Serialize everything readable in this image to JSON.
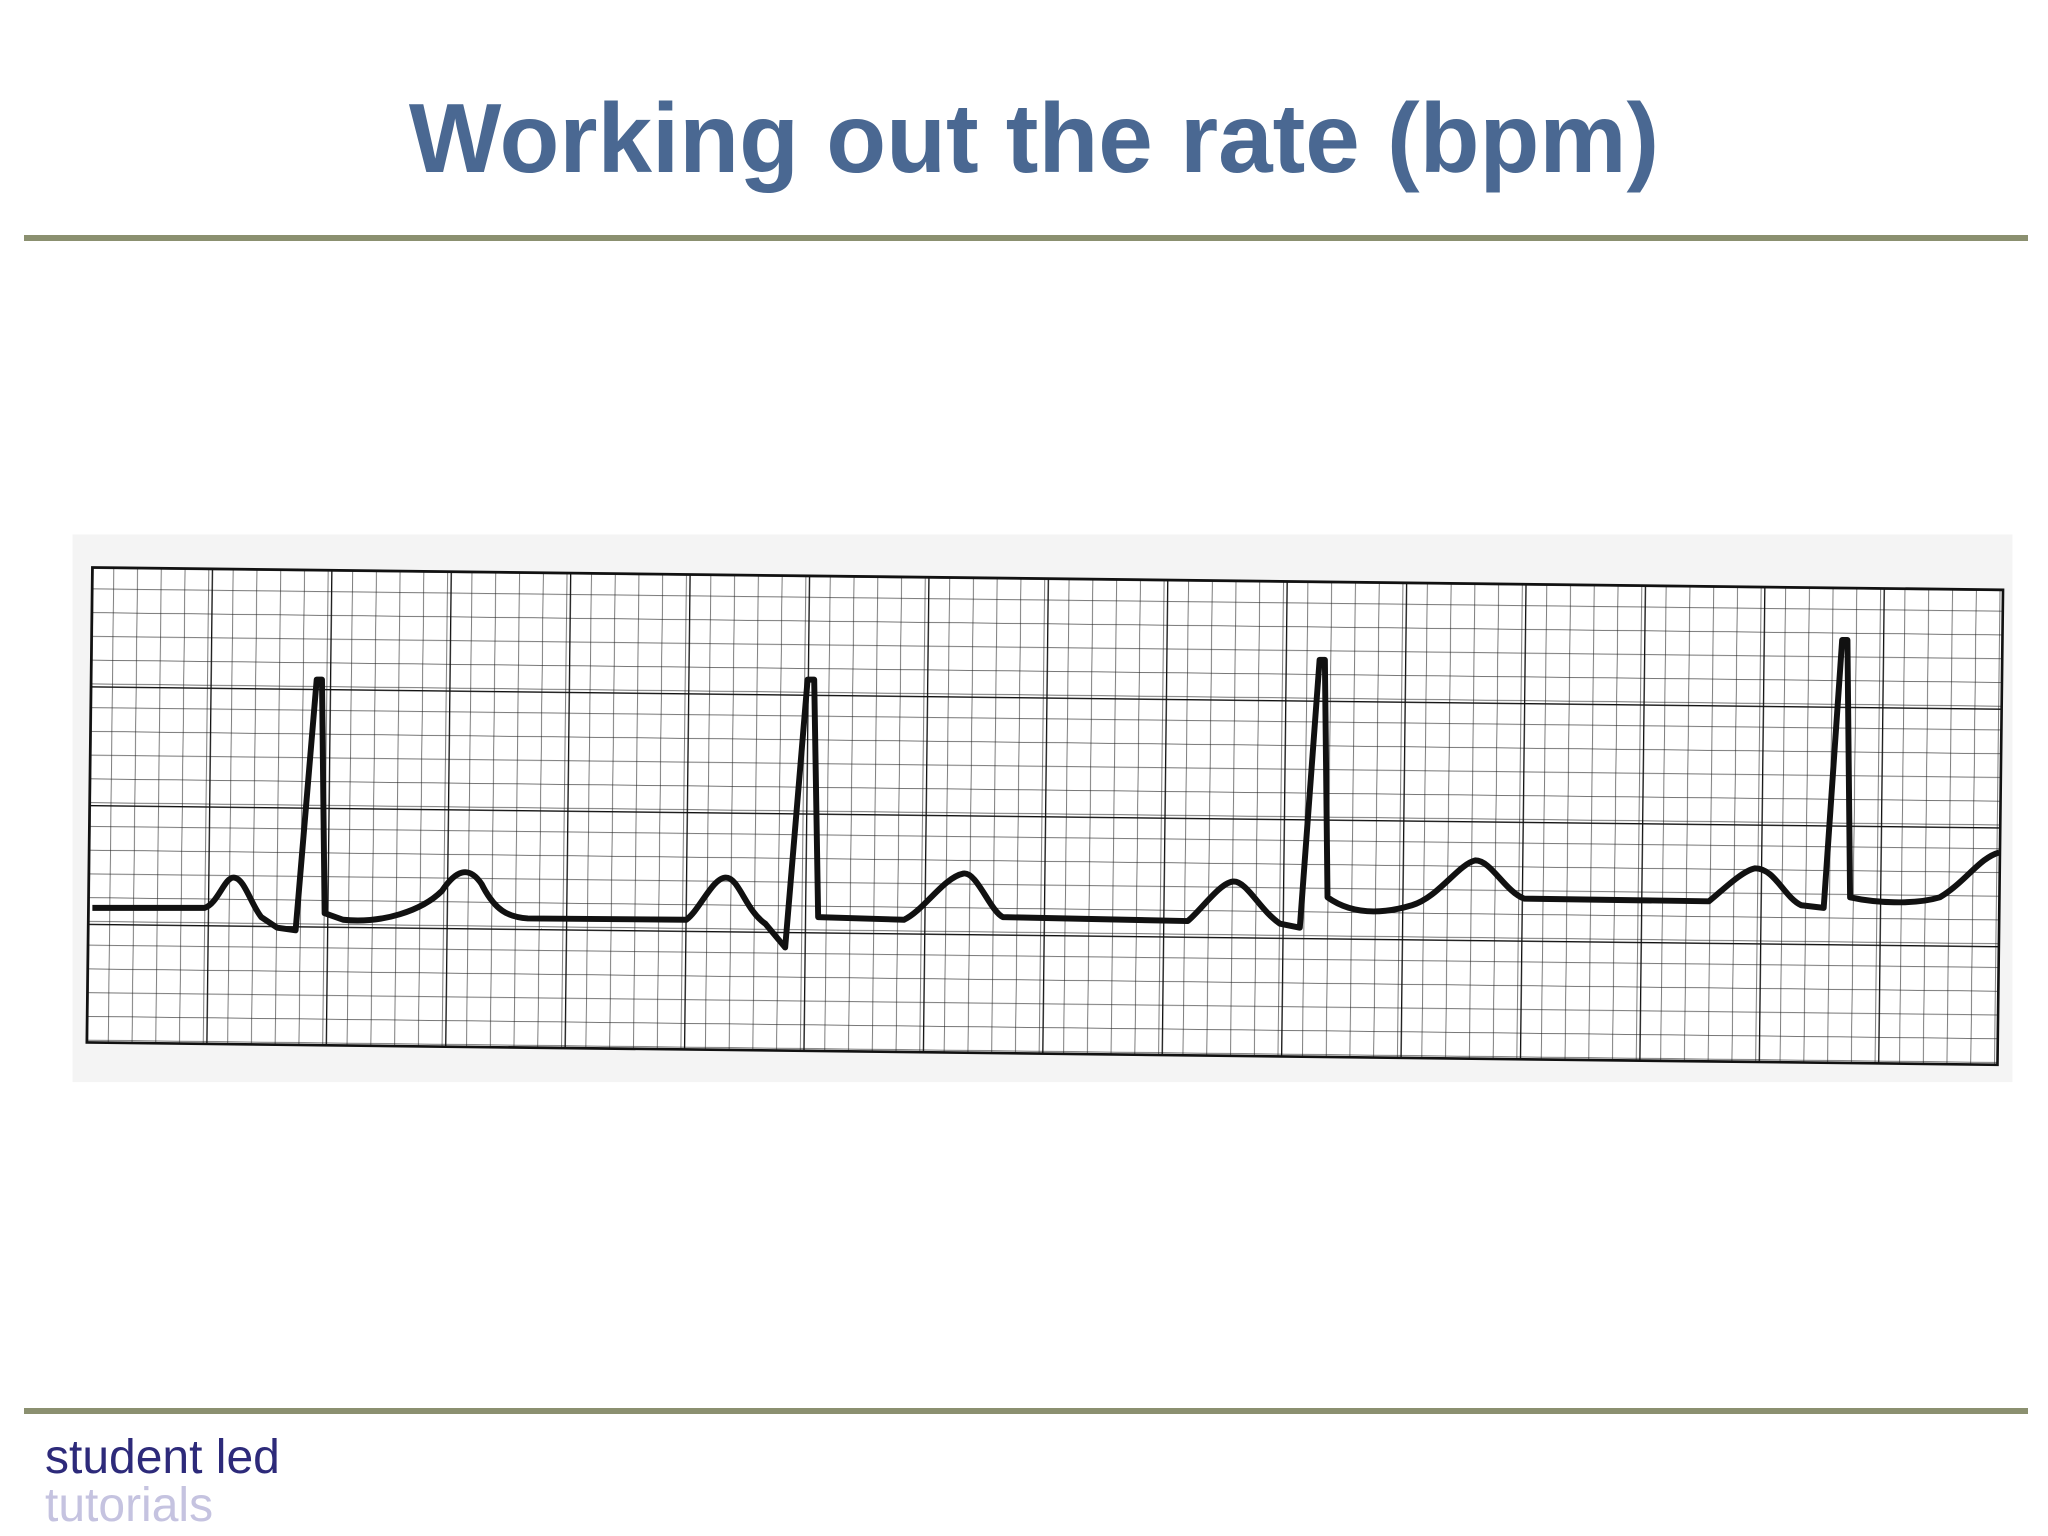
{
  "header": {
    "title": "Working out the rate (bpm)"
  },
  "footer": {
    "line1": "student led",
    "line2": "tutorials"
  }
}
